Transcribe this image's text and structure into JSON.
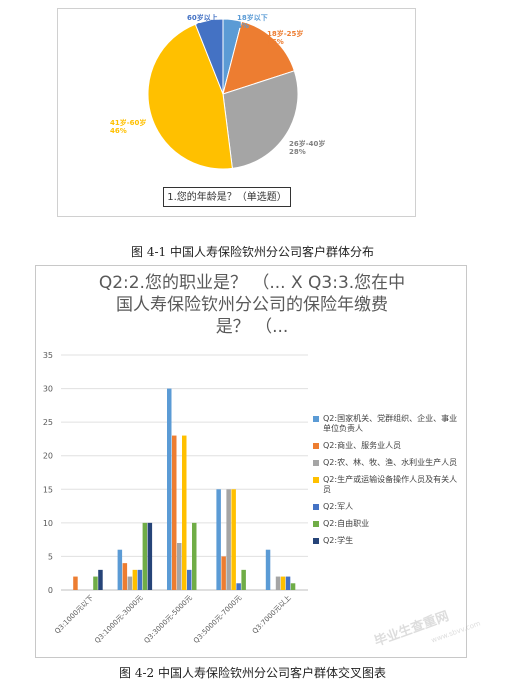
{
  "chart_data": [
    {
      "type": "pie",
      "slices": [
        {
          "label": "18岁以下",
          "percent": "4%",
          "value": 4,
          "color": "#5B9BD5"
        },
        {
          "label": "18岁-25岁",
          "percent": "16%",
          "value": 16,
          "color": "#ED7D31"
        },
        {
          "label": "26岁-40岁",
          "percent": "28%",
          "value": 28,
          "color": "#A5A5A5"
        },
        {
          "label": "41岁-60岁",
          "percent": "46%",
          "value": 46,
          "color": "#FFC000"
        },
        {
          "label": "60岁以上",
          "percent": "6%",
          "value": 6,
          "color": "#4472C4"
        }
      ],
      "question": "1.您的年龄是？（单选题）"
    },
    {
      "type": "bar",
      "title_lines": [
        "Q2:2.您的职业是？ （... X Q3:3.您在中",
        "国人寿保险钦州分公司的保险年缴费",
        "是？ （..."
      ],
      "categories": [
        "Q3:1000元以下",
        "Q3:1000元-3000元",
        "Q3:3000元-5000元",
        "Q3:5000元-7000元",
        "Q3:7000元以上"
      ],
      "ylim": [
        0,
        35
      ],
      "yticks": [
        "0",
        "5",
        "10",
        "15",
        "20",
        "25",
        "30",
        "35"
      ],
      "legend_position": "right",
      "series": [
        {
          "name": "Q2:国家机关、党群组织、企业、事业单位负责人",
          "color": "#5B9BD5",
          "values": [
            0,
            6,
            30,
            15,
            6
          ]
        },
        {
          "name": "Q2:商业、服务业人员",
          "color": "#ED7D31",
          "values": [
            2,
            4,
            23,
            5,
            0
          ]
        },
        {
          "name": "Q2:农、林、牧、渔、水利业生产人员",
          "color": "#A5A5A5",
          "values": [
            0,
            2,
            7,
            15,
            2
          ]
        },
        {
          "name": "Q2:生产或运输设备操作人员及有关人员",
          "color": "#FFC000",
          "values": [
            0,
            3,
            23,
            15,
            2
          ]
        },
        {
          "name": "Q2:军人",
          "color": "#4472C4",
          "values": [
            0,
            3,
            3,
            1,
            2
          ]
        },
        {
          "name": "Q2:自由职业",
          "color": "#70AD47",
          "values": [
            2,
            10,
            10,
            3,
            1
          ]
        },
        {
          "name": "Q2:学生",
          "color": "#264478",
          "values": [
            3,
            10,
            0,
            0,
            0
          ]
        }
      ]
    }
  ],
  "captions": {
    "figure1": "图 4-1 中国人寿保险钦州分公司客户群体分布",
    "figure2": "图 4-2 中国人寿保险钦州分公司客户群体交叉图表"
  },
  "watermark": {
    "main": "毕业生查重网",
    "sub": "www.sbvv.com"
  }
}
